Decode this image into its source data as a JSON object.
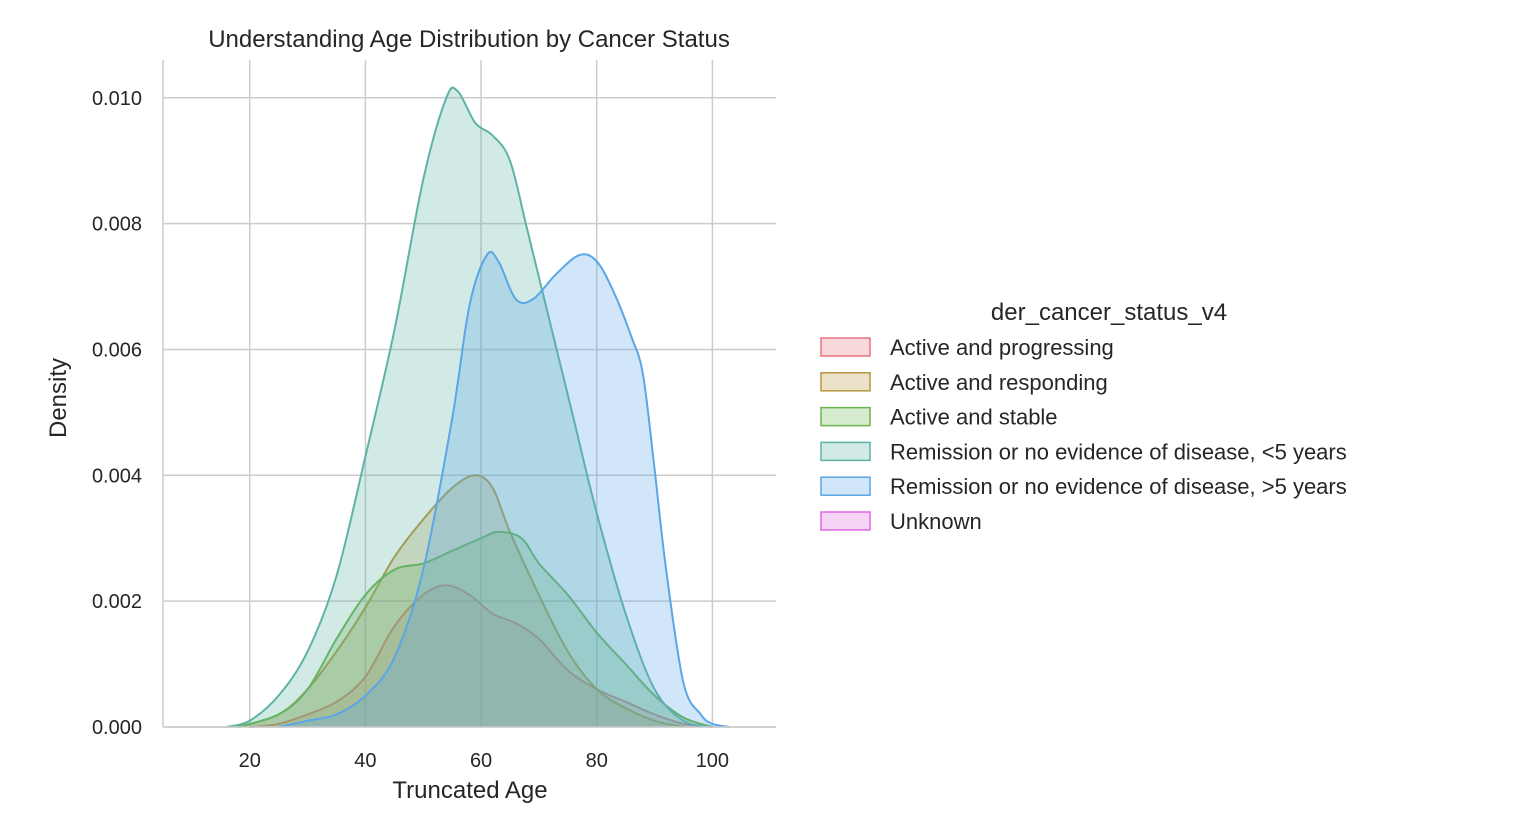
{
  "chart_data": {
    "type": "area",
    "title": "Understanding Age Distribution by Cancer Status",
    "xlabel": "Truncated Age",
    "ylabel": "Density",
    "xlim": [
      5,
      111
    ],
    "ylim": [
      0,
      0.0106
    ],
    "xticks": [
      20,
      40,
      60,
      80,
      100
    ],
    "yticks": [
      0.0,
      0.002,
      0.004,
      0.006,
      0.008,
      0.01
    ],
    "ytick_labels": [
      "0.000",
      "0.002",
      "0.004",
      "0.006",
      "0.008",
      "0.010"
    ],
    "grid": true,
    "legend": {
      "title": "der_cancer_status_v4",
      "placement": "right"
    },
    "series": [
      {
        "name": "Active and progressing",
        "color": "#e8737f",
        "points": [
          [
            20,
            0
          ],
          [
            25,
            5e-05
          ],
          [
            30,
            0.0002
          ],
          [
            35,
            0.0004
          ],
          [
            40,
            0.0008
          ],
          [
            45,
            0.0016
          ],
          [
            50,
            0.0021
          ],
          [
            54,
            0.00225
          ],
          [
            58,
            0.0021
          ],
          [
            62,
            0.0018
          ],
          [
            66,
            0.00165
          ],
          [
            70,
            0.0014
          ],
          [
            75,
            0.0009
          ],
          [
            80,
            0.0006
          ],
          [
            85,
            0.0004
          ],
          [
            90,
            0.0002
          ],
          [
            95,
            5e-05
          ],
          [
            100,
            0
          ]
        ]
      },
      {
        "name": "Active and responding",
        "color": "#b8963e",
        "points": [
          [
            18,
            0
          ],
          [
            25,
            0.0002
          ],
          [
            30,
            0.0006
          ],
          [
            35,
            0.0012
          ],
          [
            40,
            0.0019
          ],
          [
            45,
            0.0027
          ],
          [
            50,
            0.0033
          ],
          [
            55,
            0.0038
          ],
          [
            59,
            0.004
          ],
          [
            62,
            0.0038
          ],
          [
            65,
            0.0031
          ],
          [
            70,
            0.0021
          ],
          [
            75,
            0.0012
          ],
          [
            80,
            0.0006
          ],
          [
            85,
            0.0003
          ],
          [
            90,
            0.0001
          ],
          [
            95,
            0
          ]
        ]
      },
      {
        "name": "Active and stable",
        "color": "#6ab34d",
        "points": [
          [
            18,
            0
          ],
          [
            25,
            0.0002
          ],
          [
            30,
            0.0006
          ],
          [
            35,
            0.0014
          ],
          [
            40,
            0.0021
          ],
          [
            45,
            0.0025
          ],
          [
            50,
            0.0026
          ],
          [
            55,
            0.0028
          ],
          [
            60,
            0.003
          ],
          [
            63,
            0.0031
          ],
          [
            67,
            0.003
          ],
          [
            70,
            0.0026
          ],
          [
            75,
            0.0021
          ],
          [
            80,
            0.0015
          ],
          [
            85,
            0.001
          ],
          [
            90,
            0.0005
          ],
          [
            95,
            0.00015
          ],
          [
            100,
            0
          ]
        ]
      },
      {
        "name": "Remission or no evidence of disease, <5 years",
        "color": "#5fb3a4",
        "points": [
          [
            16,
            0
          ],
          [
            20,
            0.0001
          ],
          [
            25,
            0.0005
          ],
          [
            30,
            0.0012
          ],
          [
            35,
            0.0024
          ],
          [
            40,
            0.0043
          ],
          [
            45,
            0.0063
          ],
          [
            50,
            0.0087
          ],
          [
            54,
            0.01
          ],
          [
            56,
            0.0101
          ],
          [
            59,
            0.0096
          ],
          [
            62,
            0.0094
          ],
          [
            65,
            0.009
          ],
          [
            68,
            0.0079
          ],
          [
            72,
            0.0064
          ],
          [
            76,
            0.0049
          ],
          [
            80,
            0.0034
          ],
          [
            85,
            0.0018
          ],
          [
            90,
            0.0006
          ],
          [
            95,
            0.0001
          ],
          [
            100,
            0
          ]
        ]
      },
      {
        "name": "Remission or no evidence of disease, >5 years",
        "color": "#5aa6e6",
        "points": [
          [
            25,
            0
          ],
          [
            30,
            0.0001
          ],
          [
            35,
            0.0002
          ],
          [
            40,
            0.0005
          ],
          [
            45,
            0.0011
          ],
          [
            50,
            0.0025
          ],
          [
            55,
            0.0049
          ],
          [
            58,
            0.0067
          ],
          [
            61,
            0.0075
          ],
          [
            63,
            0.0074
          ],
          [
            66,
            0.0068
          ],
          [
            69,
            0.0068
          ],
          [
            73,
            0.0072
          ],
          [
            77,
            0.0075
          ],
          [
            80,
            0.0074
          ],
          [
            83,
            0.0069
          ],
          [
            86,
            0.0062
          ],
          [
            88,
            0.0056
          ],
          [
            90,
            0.0041
          ],
          [
            92,
            0.0025
          ],
          [
            95,
            0.0007
          ],
          [
            98,
            0.0002
          ],
          [
            100,
            5e-05
          ],
          [
            103,
            0
          ]
        ]
      },
      {
        "name": "Unknown",
        "color": "#e066e0",
        "points": []
      }
    ]
  }
}
